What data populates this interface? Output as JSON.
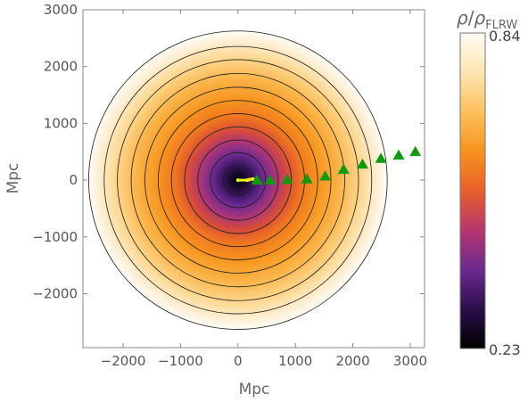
{
  "chart_data": {
    "type": "heatmap",
    "xlabel": "Mpc",
    "ylabel": "Mpc",
    "xlim": [
      -2700,
      3250
    ],
    "ylim": [
      -2950,
      3000
    ],
    "x_ticks": [
      -2000,
      -1000,
      0,
      1000,
      2000,
      3000
    ],
    "y_ticks": [
      -2000,
      -1000,
      0,
      1000,
      2000,
      3000
    ],
    "x_tick_labels": [
      "−2000",
      "−1000",
      "0",
      "1000",
      "2000",
      "3000"
    ],
    "y_tick_labels": [
      "−2000",
      "−1000",
      "0",
      "1000",
      "2000",
      "3000"
    ],
    "field": {
      "center": [
        0,
        0
      ],
      "outer_radius": 2600,
      "min_value": 0.23,
      "max_value": 0.84
    },
    "colorbar": {
      "label_rho": "ρ",
      "label_slash": "/",
      "label_rho2": "ρ",
      "label_sub": "FLRW",
      "min_label": "0.23",
      "max_label": "0.84",
      "colors": [
        "#000000",
        "#2a0f4a",
        "#6b2a8f",
        "#b5366f",
        "#e8602a",
        "#f8931e",
        "#fcc15c",
        "#fde5b0",
        "#fffcf5"
      ]
    },
    "contour_radii": [
      260,
      480,
      700,
      930,
      1160,
      1390,
      1620,
      1860,
      2100,
      2330,
      2600
    ],
    "markers": {
      "green_triangles": {
        "color": "#0f9a10",
        "points": [
          {
            "x": 330,
            "y": 0
          },
          {
            "x": 560,
            "y": 0
          },
          {
            "x": 860,
            "y": 10
          },
          {
            "x": 1200,
            "y": 20
          },
          {
            "x": 1520,
            "y": 70
          },
          {
            "x": 1840,
            "y": 190
          },
          {
            "x": 2170,
            "y": 280
          },
          {
            "x": 2490,
            "y": 380
          },
          {
            "x": 2800,
            "y": 440
          },
          {
            "x": 3090,
            "y": 500
          }
        ]
      },
      "yellow_path": {
        "color": "#f5ef1a",
        "points": [
          {
            "x": 0,
            "y": 0
          },
          {
            "x": 160,
            "y": 0
          },
          {
            "x": 200,
            "y": 10
          },
          {
            "x": 260,
            "y": 20
          }
        ]
      }
    }
  }
}
